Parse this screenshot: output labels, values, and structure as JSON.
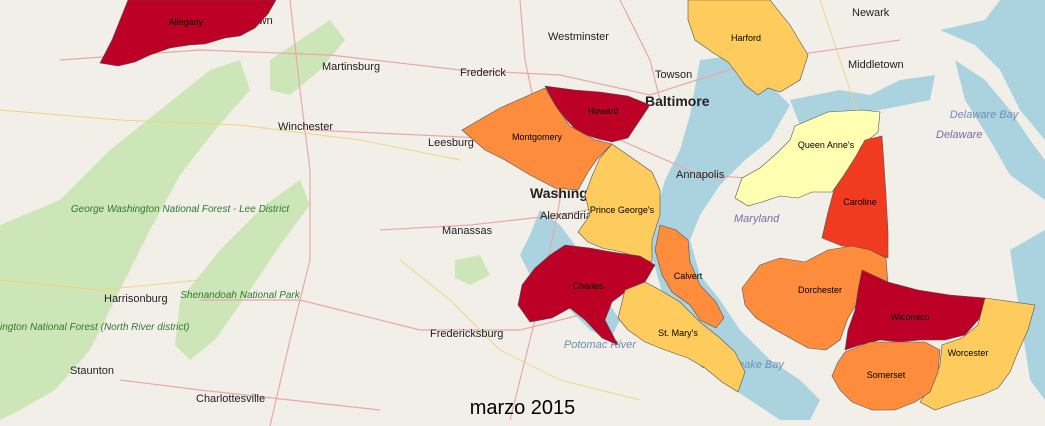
{
  "caption": "marzo 2015",
  "colors": {
    "level1": "#ffffb2",
    "level2": "#fecc5c",
    "level3": "#fd8d3c",
    "level4": "#f03b20",
    "level5": "#bd0026",
    "water": "#aad3df",
    "land": "#f2efe9",
    "forest": "#cde6b8"
  },
  "counties": [
    {
      "name": "Allegany",
      "level": 5
    },
    {
      "name": "Harford",
      "level": 2
    },
    {
      "name": "Howard",
      "level": 5
    },
    {
      "name": "Montgomery",
      "level": 3
    },
    {
      "name": "Queen Anne's",
      "level": 1
    },
    {
      "name": "Caroline",
      "level": 4
    },
    {
      "name": "Prince George's",
      "level": 2
    },
    {
      "name": "Calvert",
      "level": 3
    },
    {
      "name": "Charles",
      "level": 5
    },
    {
      "name": "Dorchester",
      "level": 3
    },
    {
      "name": "St. Mary's",
      "level": 2
    },
    {
      "name": "Wicomico",
      "level": 5
    },
    {
      "name": "Worcester",
      "level": 2
    },
    {
      "name": "Somerset",
      "level": 3
    }
  ],
  "basemap": {
    "cities": [
      "Hagerstown",
      "Westminster",
      "Newark",
      "Martinsburg",
      "Frederick",
      "Towson",
      "Baltimore",
      "Middletown",
      "Winchester",
      "Leesburg",
      "Annapolis",
      "Washington",
      "Alexandria",
      "Manassas",
      "Harrisonburg",
      "Fredericksburg",
      "Staunton",
      "Charlottesville"
    ],
    "forests": [
      "George Washington National Forest - Lee District",
      "Shenandoah National Park",
      "George Washington National Forest (North River district)"
    ],
    "water": [
      "Delaware Bay",
      "Chesapeake Bay",
      "Potomac River"
    ],
    "states": [
      "Maryland",
      "Delaware"
    ]
  }
}
